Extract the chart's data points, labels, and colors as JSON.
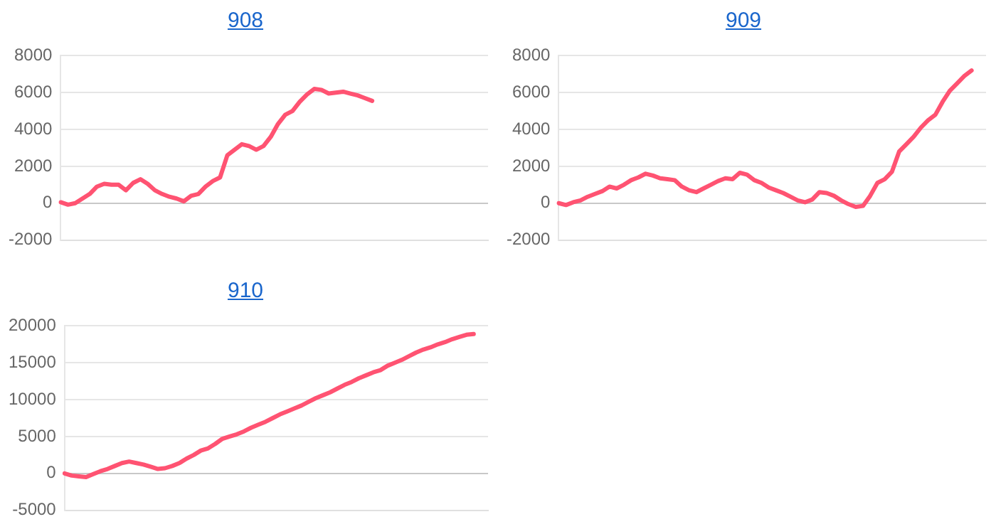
{
  "chart_data": [
    {
      "type": "line",
      "title": "908",
      "categories": [
        null,
        null,
        null,
        null,
        null,
        null,
        null,
        null,
        null,
        null,
        null,
        null,
        null,
        null,
        null,
        null,
        null,
        null,
        null,
        null,
        null,
        null,
        null,
        null,
        null,
        null,
        null,
        null,
        null,
        null,
        null,
        null,
        null,
        null,
        null,
        null,
        null,
        null,
        null,
        null,
        null,
        null,
        null,
        null,
        null,
        null,
        null,
        null,
        null,
        null,
        null,
        null,
        null,
        null,
        null,
        null,
        null,
        null,
        null,
        null
      ],
      "series": [
        {
          "color": "#ff5372",
          "values": [
            50,
            -80,
            0,
            250,
            500,
            900,
            1050,
            1000,
            1000,
            700,
            1100,
            1300,
            1050,
            700,
            500,
            350,
            250,
            100,
            400,
            500,
            900,
            1200,
            1400,
            2600,
            2900,
            3200,
            3100,
            2900,
            3100,
            3600,
            4300,
            4800,
            5000,
            5500,
            5900,
            6200,
            6150,
            5950,
            6000,
            6050,
            5950,
            5850,
            5700,
            5550,
            null,
            null,
            null,
            null,
            null,
            null,
            null,
            null,
            null,
            null,
            null,
            null,
            null,
            null,
            null,
            null
          ]
        }
      ],
      "ylim": [
        -2000,
        8000
      ],
      "yticks": [
        -2000,
        0,
        2000,
        4000,
        6000,
        8000
      ],
      "grid": "y",
      "tick_labels": "y",
      "marker": "none",
      "line_style": "solid"
    },
    {
      "type": "line",
      "title": "909",
      "categories": [
        null,
        null,
        null,
        null,
        null,
        null,
        null,
        null,
        null,
        null,
        null,
        null,
        null,
        null,
        null,
        null,
        null,
        null,
        null,
        null,
        null,
        null,
        null,
        null,
        null,
        null,
        null,
        null,
        null,
        null,
        null,
        null,
        null,
        null,
        null,
        null,
        null,
        null,
        null,
        null,
        null,
        null,
        null,
        null,
        null,
        null,
        null,
        null,
        null,
        null,
        null,
        null,
        null,
        null,
        null,
        null,
        null,
        null,
        null,
        null
      ],
      "series": [
        {
          "color": "#ff5372",
          "values": [
            0,
            -100,
            50,
            150,
            350,
            500,
            650,
            900,
            800,
            1000,
            1250,
            1400,
            1600,
            1500,
            1350,
            1300,
            1250,
            900,
            700,
            600,
            800,
            1000,
            1200,
            1350,
            1300,
            1650,
            1550,
            1250,
            1100,
            850,
            700,
            550,
            350,
            150,
            50,
            200,
            600,
            550,
            400,
            150,
            -50,
            -200,
            -150,
            400,
            1100,
            1300,
            1700,
            2800,
            3200,
            3600,
            4100,
            4500,
            4800,
            5500,
            6100,
            6500,
            6900,
            7200,
            null,
            null
          ]
        }
      ],
      "ylim": [
        -2000,
        8000
      ],
      "yticks": [
        -2000,
        0,
        2000,
        4000,
        6000,
        8000
      ],
      "grid": "y",
      "tick_labels": "y",
      "marker": "none",
      "line_style": "solid"
    },
    {
      "type": "line",
      "title": "910",
      "categories": [
        null,
        null,
        null,
        null,
        null,
        null,
        null,
        null,
        null,
        null,
        null,
        null,
        null,
        null,
        null,
        null,
        null,
        null,
        null,
        null,
        null,
        null,
        null,
        null,
        null,
        null,
        null,
        null,
        null,
        null,
        null,
        null,
        null,
        null,
        null,
        null,
        null,
        null,
        null,
        null,
        null,
        null,
        null,
        null,
        null,
        null,
        null,
        null,
        null,
        null,
        null,
        null,
        null,
        null,
        null,
        null,
        null,
        null,
        null,
        null
      ],
      "series": [
        {
          "color": "#ff5372",
          "values": [
            0,
            -300,
            -400,
            -500,
            -100,
            300,
            600,
            1000,
            1400,
            1600,
            1400,
            1200,
            900,
            600,
            700,
            1000,
            1400,
            2000,
            2500,
            3100,
            3400,
            4000,
            4700,
            5000,
            5300,
            5700,
            6200,
            6600,
            7000,
            7500,
            8000,
            8400,
            8800,
            9200,
            9700,
            10200,
            10600,
            11000,
            11500,
            12000,
            12400,
            12900,
            13300,
            13700,
            14000,
            14600,
            15000,
            15400,
            15900,
            16400,
            16800,
            17100,
            17500,
            17800,
            18200,
            18500,
            18800,
            18900,
            null,
            null
          ]
        }
      ],
      "ylim": [
        -5000,
        20000
      ],
      "yticks": [
        -5000,
        0,
        5000,
        10000,
        15000,
        20000
      ],
      "grid": "y",
      "tick_labels": "y",
      "marker": "none",
      "line_style": "solid"
    }
  ]
}
